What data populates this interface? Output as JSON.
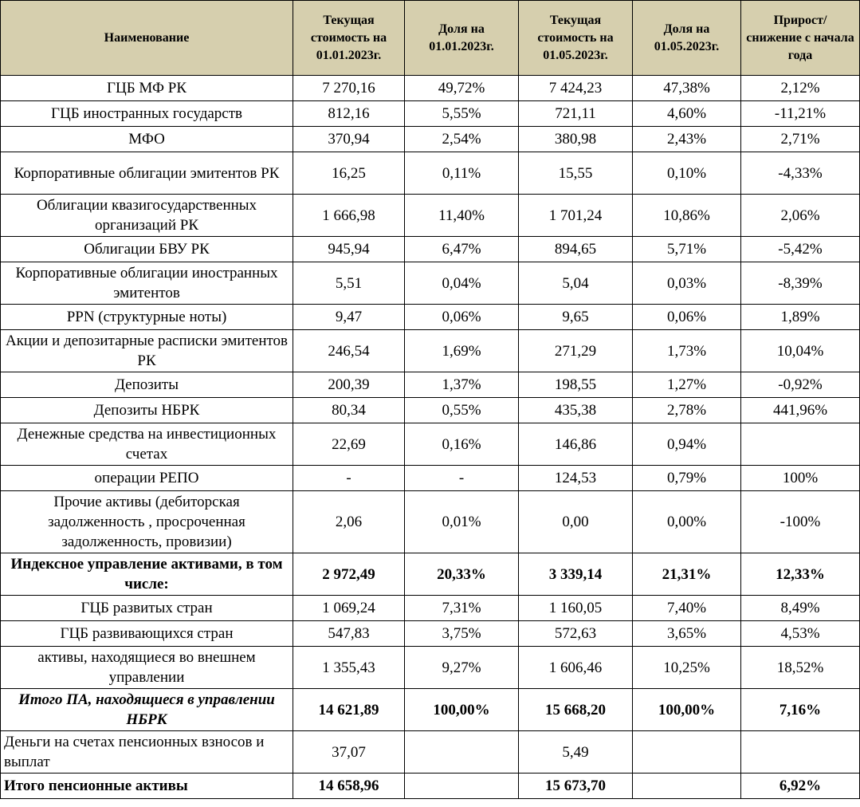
{
  "headers": [
    "Наименование",
    "Текущая стоимость на 01.01.2023г.",
    "Доля на 01.01.2023г.",
    "Текущая стоимость на 01.05.2023г.",
    "Доля на 01.05.2023г.",
    "Прирост/ снижение с начала года"
  ],
  "rows": [
    {
      "name": "ГЦБ МФ РК",
      "v1": "7 270,16",
      "s1": "49,72%",
      "v2": "7 424,23",
      "s2": "47,38%",
      "g": "2,12%"
    },
    {
      "name": "ГЦБ иностранных государств",
      "v1": "812,16",
      "s1": "5,55%",
      "v2": "721,11",
      "s2": "4,60%",
      "g": "-11,21%"
    },
    {
      "name": "МФО",
      "v1": "370,94",
      "s1": "2,54%",
      "v2": "380,98",
      "s2": "2,43%",
      "g": "2,71%"
    },
    {
      "name": "Корпоративные облигации эмитентов РК",
      "v1": "16,25",
      "s1": "0,11%",
      "v2": "15,55",
      "s2": "0,10%",
      "g": "-4,33%"
    },
    {
      "name": "Облигации квазигосударственных организаций РК",
      "v1": "1 666,98",
      "s1": "11,40%",
      "v2": "1 701,24",
      "s2": "10,86%",
      "g": "2,06%"
    },
    {
      "name": "Облигации БВУ РК",
      "v1": "945,94",
      "s1": "6,47%",
      "v2": "894,65",
      "s2": "5,71%",
      "g": "-5,42%"
    },
    {
      "name": "Корпоративные облигации иностранных эмитентов",
      "v1": "5,51",
      "s1": "0,04%",
      "v2": "5,04",
      "s2": "0,03%",
      "g": "-8,39%"
    },
    {
      "name": "PPN (структурные ноты)",
      "v1": "9,47",
      "s1": "0,06%",
      "v2": "9,65",
      "s2": "0,06%",
      "g": "1,89%"
    },
    {
      "name": "Акции и депозитарные расписки эмитентов РК",
      "v1": "246,54",
      "s1": "1,69%",
      "v2": "271,29",
      "s2": "1,73%",
      "g": "10,04%"
    },
    {
      "name": "Депозиты",
      "v1": "200,39",
      "s1": "1,37%",
      "v2": "198,55",
      "s2": "1,27%",
      "g": "-0,92%"
    },
    {
      "name": "Депозиты НБРК",
      "v1": "80,34",
      "s1": "0,55%",
      "v2": "435,38",
      "s2": "2,78%",
      "g": "441,96%"
    },
    {
      "name": "Денежные средства на инвестиционных счетах",
      "v1": "22,69",
      "s1": "0,16%",
      "v2": "146,86",
      "s2": "0,94%",
      "g": ""
    },
    {
      "name": "операции РЕПО",
      "v1": "-",
      "s1": "-",
      "v2": "124,53",
      "s2": "0,79%",
      "g": "100%"
    },
    {
      "name": "Прочие активы (дебиторская задолженность , просроченная задолженность, провизии)",
      "v1": "2,06",
      "s1": "0,01%",
      "v2": "0,00",
      "s2": "0,00%",
      "g": "-100%"
    },
    {
      "name": "Индексное управление активами, в том числе:",
      "v1": "2 972,49",
      "s1": "20,33%",
      "v2": "3 339,14",
      "s2": "21,31%",
      "g": "12,33%"
    },
    {
      "name": "ГЦБ развитых стран",
      "v1": "1 069,24",
      "s1": "7,31%",
      "v2": "1 160,05",
      "s2": "7,40%",
      "g": "8,49%"
    },
    {
      "name": "ГЦБ развивающихся стран",
      "v1": "547,83",
      "s1": "3,75%",
      "v2": "572,63",
      "s2": "3,65%",
      "g": "4,53%"
    },
    {
      "name": "активы, находящиеся во внешнем управлении",
      "v1": "1 355,43",
      "s1": "9,27%",
      "v2": "1 606,46",
      "s2": "10,25%",
      "g": "18,52%"
    },
    {
      "name": "Итого ПА, находящиеся в управлении НБРК",
      "v1": "14 621,89",
      "s1": "100,00%",
      "v2": "15 668,20",
      "s2": "100,00%",
      "g": "7,16%"
    },
    {
      "name": "Деньги на счетах пенсионных взносов и выплат",
      "v1": "37,07",
      "s1": "",
      "v2": "5,49",
      "s2": "",
      "g": ""
    },
    {
      "name": "Итого пенсионные активы",
      "v1": "14 658,96",
      "s1": "",
      "v2": "15 673,70",
      "s2": "",
      "g": "6,92%"
    }
  ],
  "colors": {
    "header_bg": "#d6cfae",
    "border": "#000000"
  }
}
